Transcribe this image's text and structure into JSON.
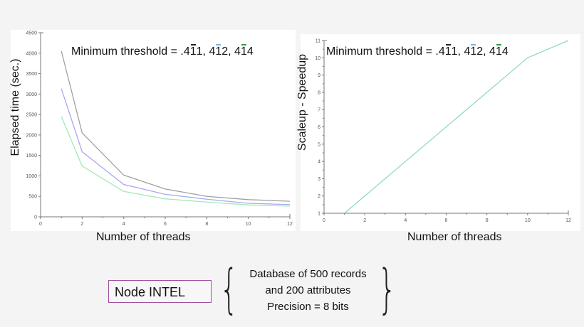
{
  "left_chart": {
    "ylabel": "Elapsed time (sec.)",
    "xlabel": "Number of threads",
    "threshold_prefix": "Minimum threshold = .4",
    "threshold_parts": [
      {
        "digit1": "1",
        "digit2": "1",
        "sep": ", 4",
        "color": "#222222"
      },
      {
        "digit1": "1",
        "digit2": "2",
        "sep": ", 4",
        "color": "#7fb3e0"
      },
      {
        "digit1": "1",
        "digit2": "4",
        "sep": "",
        "color": "#2e9e3e"
      }
    ]
  },
  "right_chart": {
    "ylabel": "Scaleup - Speedup",
    "xlabel": "Number of threads",
    "threshold_prefix": "Minimum threshold = .4"
  },
  "node_label": "Node INTEL",
  "description": {
    "line1": "Database of 500 records",
    "line2": "and 200 attributes",
    "line3": "Precision = 8 bits"
  },
  "chart_data": [
    {
      "type": "line",
      "title": "Minimum threshold = .4¯11, 4¯12, 4¯14",
      "xlabel": "Number of threads",
      "ylabel": "Elapsed time (sec.)",
      "xlim": [
        0,
        12
      ],
      "ylim": [
        0,
        4500
      ],
      "xticks": [
        0,
        2,
        4,
        6,
        8,
        10,
        12
      ],
      "yticks": [
        0,
        500,
        1000,
        1500,
        2000,
        2500,
        3000,
        3500,
        4000,
        4500
      ],
      "x": [
        1,
        2,
        4,
        6,
        8,
        10,
        12
      ],
      "series": [
        {
          "name": "threshold .4¯11",
          "color": "#a0a0a0",
          "values": [
            4050,
            2050,
            1020,
            680,
            500,
            420,
            380
          ]
        },
        {
          "name": "threshold .4¯12",
          "color": "#a8a8f0",
          "values": [
            3130,
            1590,
            790,
            550,
            430,
            330,
            300
          ]
        },
        {
          "name": "threshold .4¯14",
          "color": "#a0eab8",
          "values": [
            2450,
            1240,
            620,
            440,
            360,
            290,
            260
          ]
        }
      ],
      "grid": false,
      "legend": "none"
    },
    {
      "type": "line",
      "title": "Minimum threshold = .4¯11, 4¯12, 4¯14",
      "xlabel": "Number of threads",
      "ylabel": "Scaleup - Speedup",
      "xlim": [
        0,
        12
      ],
      "ylim": [
        1,
        11
      ],
      "xticks": [
        0,
        2,
        4,
        6,
        8,
        10,
        12
      ],
      "yticks": [
        1,
        2,
        3,
        4,
        5,
        6,
        7,
        8,
        9,
        10,
        11
      ],
      "x": [
        1,
        10,
        12
      ],
      "series": [
        {
          "name": "speedup",
          "color": "#8fdcc0",
          "values": [
            1,
            10,
            11
          ]
        }
      ],
      "grid": false,
      "legend": "none"
    }
  ]
}
